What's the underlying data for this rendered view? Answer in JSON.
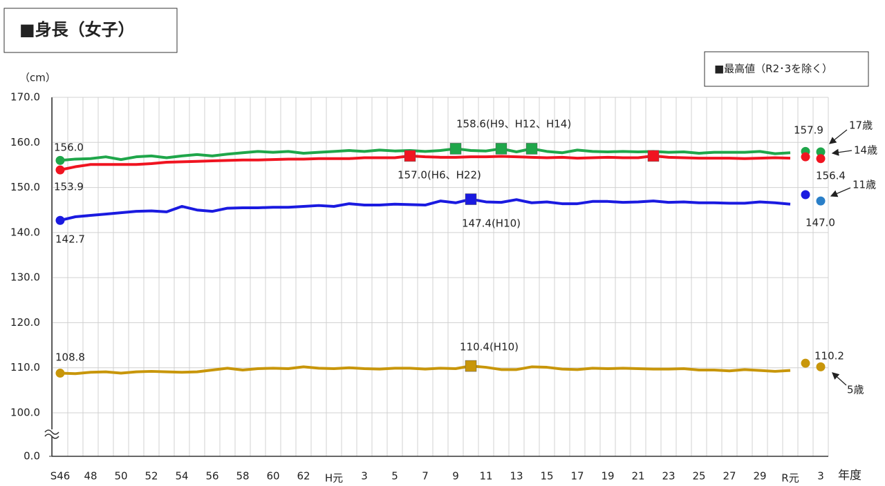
{
  "chart_data": {
    "type": "line",
    "title": "■身長（女子）",
    "y_unit": "（cm）",
    "x_label": "年度",
    "legend_note": "■最高値（R2･3を除く）",
    "axis_break": true,
    "grid": true,
    "categories": [
      "S46",
      null,
      "48",
      null,
      "50",
      null,
      "52",
      null,
      "54",
      null,
      "56",
      null,
      "58",
      null,
      "60",
      null,
      "62",
      null,
      "H元",
      null,
      "3",
      null,
      "5",
      null,
      "7",
      null,
      "9",
      null,
      "11",
      null,
      "13",
      null,
      "15",
      null,
      "17",
      null,
      "19",
      null,
      "21",
      null,
      "23",
      null,
      "25",
      null,
      "27",
      null,
      "29",
      null,
      "R元",
      null,
      "3"
    ],
    "ylim": [
      100,
      170
    ],
    "yticks": [
      {
        "value": 0,
        "label": "0.0"
      },
      {
        "value": 100,
        "label": "100.0"
      },
      {
        "value": 110,
        "label": "110.0"
      },
      {
        "value": 120,
        "label": "120.0"
      },
      {
        "value": 130,
        "label": "130.0"
      },
      {
        "value": 140,
        "label": "140.0"
      },
      {
        "value": 150,
        "label": "150.0"
      },
      {
        "value": 160,
        "label": "160.0"
      },
      {
        "value": 170,
        "label": "170.0"
      }
    ],
    "series": [
      {
        "name": "17歳",
        "color": "#1fa64a",
        "point_color": "#1fa64a",
        "values": [
          156.0,
          156.3,
          156.4,
          156.8,
          156.2,
          156.8,
          157.0,
          156.6,
          157.0,
          157.3,
          157.0,
          157.4,
          157.7,
          158.0,
          157.8,
          158.0,
          157.6,
          157.8,
          158.0,
          158.2,
          158.0,
          158.3,
          158.1,
          158.2,
          158.0,
          158.2,
          158.6,
          158.2,
          158.1,
          158.6,
          157.9,
          158.6,
          158.0,
          157.7,
          158.3,
          158.0,
          157.9,
          158.0,
          157.9,
          158.0,
          157.8,
          157.9,
          157.6,
          157.8,
          157.8,
          157.8,
          158.0,
          157.5,
          157.7,
          null,
          null
        ],
        "point_values": [
          null,
          null,
          null,
          null,
          null,
          null,
          null,
          null,
          null,
          null,
          null,
          null,
          null,
          null,
          null,
          null,
          null,
          null,
          null,
          null,
          null,
          null,
          null,
          null,
          null,
          null,
          null,
          null,
          null,
          null,
          null,
          null,
          null,
          null,
          null,
          null,
          null,
          null,
          null,
          null,
          null,
          null,
          null,
          null,
          null,
          null,
          null,
          null,
          null,
          158.0,
          157.9
        ],
        "start_label": "156.0",
        "max_label": "158.6(H9、H12、H14)",
        "end_label": "157.9"
      },
      {
        "name": "14歳",
        "color": "#f01420",
        "point_color": "#f01420",
        "values": [
          153.9,
          154.6,
          155.1,
          155.1,
          155.1,
          155.1,
          155.3,
          155.6,
          155.7,
          155.8,
          155.9,
          156.0,
          156.1,
          156.1,
          156.2,
          156.3,
          156.3,
          156.4,
          156.4,
          156.4,
          156.6,
          156.6,
          156.6,
          157.0,
          156.8,
          156.7,
          156.7,
          156.8,
          156.8,
          156.9,
          156.8,
          156.7,
          156.6,
          156.7,
          156.5,
          156.6,
          156.7,
          156.6,
          156.6,
          157.0,
          156.7,
          156.6,
          156.5,
          156.5,
          156.5,
          156.4,
          156.5,
          156.6,
          156.5,
          null,
          null
        ],
        "point_values": [
          null,
          null,
          null,
          null,
          null,
          null,
          null,
          null,
          null,
          null,
          null,
          null,
          null,
          null,
          null,
          null,
          null,
          null,
          null,
          null,
          null,
          null,
          null,
          null,
          null,
          null,
          null,
          null,
          null,
          null,
          null,
          null,
          null,
          null,
          null,
          null,
          null,
          null,
          null,
          null,
          null,
          null,
          null,
          null,
          null,
          null,
          null,
          null,
          null,
          156.8,
          156.4
        ],
        "start_label": "153.9",
        "max_label": "157.0(H6、H22)",
        "end_label": "156.4"
      },
      {
        "name": "11歳",
        "color": "#1a1ae0",
        "point_color": "#2a7fc8",
        "values": [
          142.7,
          143.5,
          143.8,
          144.1,
          144.4,
          144.7,
          144.8,
          144.6,
          145.8,
          145.0,
          144.7,
          145.4,
          145.5,
          145.5,
          145.6,
          145.6,
          145.8,
          146.0,
          145.8,
          146.4,
          146.1,
          146.1,
          146.3,
          146.2,
          146.1,
          147.0,
          146.6,
          147.4,
          146.8,
          146.7,
          147.3,
          146.6,
          146.8,
          146.4,
          146.4,
          146.9,
          146.9,
          146.7,
          146.8,
          147.0,
          146.7,
          146.8,
          146.6,
          146.6,
          146.5,
          146.5,
          146.8,
          146.6,
          146.3,
          null,
          null
        ],
        "point_values": [
          null,
          null,
          null,
          null,
          null,
          null,
          null,
          null,
          null,
          null,
          null,
          null,
          null,
          null,
          null,
          null,
          null,
          null,
          null,
          null,
          null,
          null,
          null,
          null,
          null,
          null,
          null,
          null,
          null,
          null,
          null,
          null,
          null,
          null,
          null,
          null,
          null,
          null,
          null,
          null,
          null,
          null,
          null,
          null,
          null,
          null,
          null,
          null,
          null,
          148.4,
          147.0
        ],
        "start_label": "142.7",
        "max_label": "147.4(H10)",
        "end_label": "147.0"
      },
      {
        "name": "5歳",
        "color": "#c8960a",
        "point_color": "#c8960a",
        "values": [
          108.8,
          108.7,
          109.0,
          109.1,
          108.8,
          109.1,
          109.2,
          109.1,
          109.0,
          109.1,
          109.5,
          109.9,
          109.5,
          109.8,
          109.9,
          109.8,
          110.2,
          109.9,
          109.8,
          110.0,
          109.8,
          109.7,
          109.9,
          109.9,
          109.7,
          109.9,
          109.8,
          110.4,
          110.1,
          109.6,
          109.6,
          110.2,
          110.1,
          109.7,
          109.6,
          109.9,
          109.8,
          109.9,
          109.8,
          109.7,
          109.7,
          109.8,
          109.5,
          109.5,
          109.3,
          109.6,
          109.4,
          109.2,
          109.4,
          null,
          null
        ],
        "point_values": [
          null,
          null,
          null,
          null,
          null,
          null,
          null,
          null,
          null,
          null,
          null,
          null,
          null,
          null,
          null,
          null,
          null,
          null,
          null,
          null,
          null,
          null,
          null,
          null,
          null,
          null,
          null,
          null,
          null,
          null,
          null,
          null,
          null,
          null,
          null,
          null,
          null,
          null,
          null,
          null,
          null,
          null,
          null,
          null,
          null,
          null,
          null,
          null,
          null,
          111.0,
          110.2
        ],
        "start_label": "108.8",
        "max_label": "110.4(H10)",
        "end_label": "110.2"
      }
    ]
  }
}
